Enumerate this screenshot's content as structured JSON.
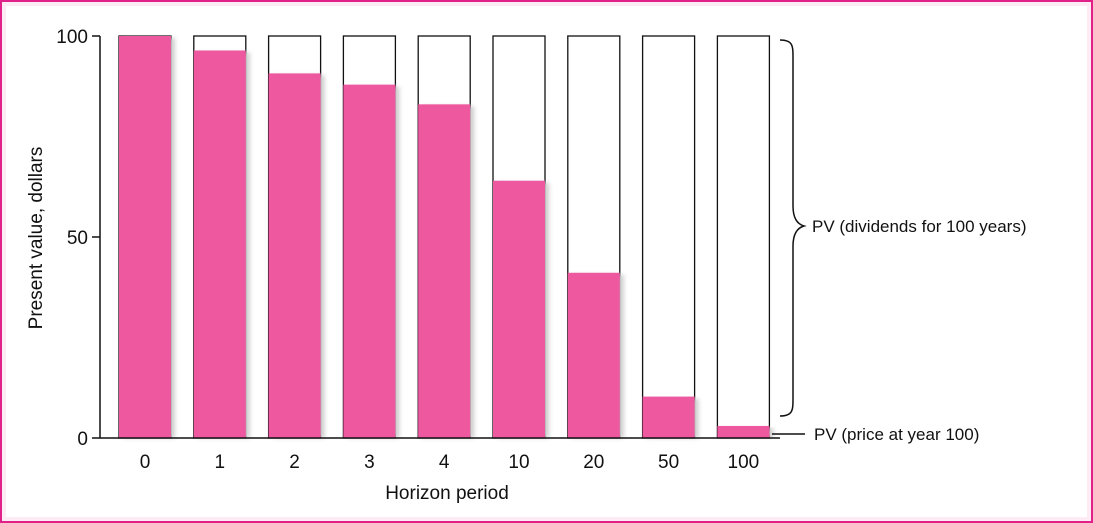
{
  "chart_data": {
    "type": "bar",
    "xlabel": "Horizon period",
    "ylabel": "Present value, dollars",
    "categories": [
      "0",
      "1",
      "2",
      "3",
      "4",
      "10",
      "20",
      "50",
      "100"
    ],
    "series": [
      {
        "values": [
          100,
          96.4,
          90.7,
          87.9,
          83.0,
          64.0,
          41.1,
          10.3,
          3.0
        ]
      }
    ],
    "totals": [
      100,
      100,
      100,
      100,
      100,
      100,
      100,
      100,
      100
    ],
    "ylim": [
      0,
      100
    ],
    "yticks": [
      0,
      50,
      100
    ],
    "grid": false,
    "annotations": {
      "dividends": "PV (dividends for 100 years)",
      "price": "PV (price at year 100)"
    },
    "colors": {
      "bar_fill": "#ee589f",
      "bar_shadow": "#c9c9c9",
      "outline": "#111111",
      "frame": "#e0218a",
      "background": "#fdecf3"
    }
  }
}
